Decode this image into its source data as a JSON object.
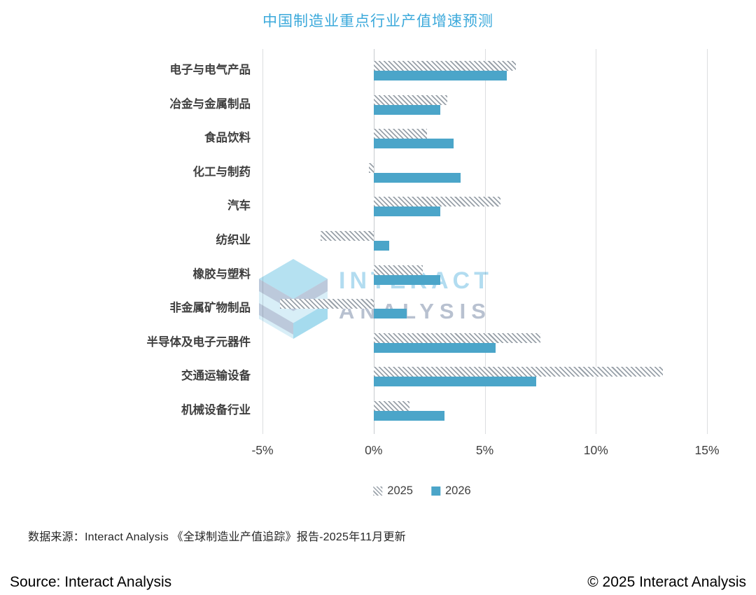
{
  "title": "中国制造业重点行业产值增速预测",
  "chart_data": {
    "type": "bar",
    "orientation": "horizontal",
    "title": "中国制造业重点行业产值增速预测",
    "categories": [
      "电子与电气产品",
      "冶金与金属制品",
      "食品饮料",
      "化工与制药",
      "汽车",
      "纺织业",
      "橡胶与塑料",
      "非金属矿物制品",
      "半导体及电子元器件",
      "交通运输设备",
      "机械设备行业"
    ],
    "series": [
      {
        "name": "2025",
        "style": "hatched",
        "values": [
          6.4,
          3.3,
          2.4,
          -0.2,
          5.7,
          -2.4,
          2.2,
          -4.2,
          7.5,
          13.0,
          1.6
        ]
      },
      {
        "name": "2026",
        "style": "solid",
        "values": [
          6.0,
          3.0,
          3.6,
          3.9,
          3.0,
          0.7,
          3.0,
          1.5,
          5.5,
          7.3,
          3.2
        ]
      }
    ],
    "value_unit": "%",
    "xlim": [
      -5,
      15
    ],
    "ticks": [
      -5,
      0,
      5,
      10,
      15
    ],
    "tick_labels": [
      "-5%",
      "0%",
      "5%",
      "10%",
      "15%"
    ],
    "grid": "vertical",
    "legend_position": "bottom",
    "colors": {
      "solid_bar": "#4BA5C9",
      "hatch_stripe": "#99A1A9",
      "gridline": "#DCDEE0",
      "title": "#3BA9DB"
    }
  },
  "legend": {
    "items": [
      "2025",
      "2026"
    ]
  },
  "watermark": {
    "line1": "INTERACT",
    "line2": "ANALYSIS"
  },
  "source_note": "数据来源：Interact Analysis 《全球制造业产值追踪》报告-2025年11月更新",
  "footer": {
    "left": "Source: Interact Analysis",
    "right": "© 2025 Interact Analysis"
  }
}
